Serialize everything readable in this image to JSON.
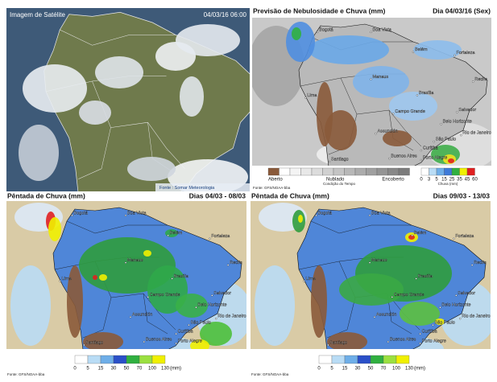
{
  "satellite": {
    "title": "Imagem de Satélite",
    "timestamp": "04/03/16 06:00",
    "source": "Fonte : Somar Meteorologia"
  },
  "forecast": {
    "title": "Previsão de Nebulosidade e Chuva (mm)",
    "date": "Dia 04/03/16 (Sex)",
    "cities": [
      "Bogotá",
      "Boa Vista",
      "Manaus",
      "Belém",
      "Fortaleza",
      "Recife",
      "Lima",
      "Brasília",
      "Salvador",
      "Belo Horizonte",
      "Campo Grande",
      "Rio de Janeiro",
      "Assunción",
      "São Paulo",
      "Curitiba",
      "Santiago",
      "Buenos Aires",
      "Porto Alegre"
    ],
    "cloud_legend": {
      "labels": [
        "Aberto",
        "Nublado",
        "Encoberto"
      ],
      "caption": "Condição do Tempo"
    },
    "rain_legend": {
      "ticks": [
        "0",
        "3",
        "5",
        "15",
        "25",
        "35",
        "45",
        "60"
      ],
      "caption": "Chuva (mm)"
    },
    "source": "Fonte: GFS/NOAA-bba"
  },
  "pentads": [
    {
      "title": "Pêntada de Chuva (mm)",
      "period": "Dias 04/03 - 08/03",
      "cities": [
        "Bogotá",
        "Boa Vista",
        "Manaus",
        "Belém",
        "Fortaleza",
        "Recife",
        "Lima",
        "Brasília",
        "Salvador",
        "Belo Horizonte",
        "Campo Grande",
        "Rio de Janeiro",
        "Assunción",
        "São Paulo",
        "Curitiba",
        "Santiago",
        "Buenos Aires",
        "Porto Alegre"
      ],
      "ticks": [
        "0",
        "5",
        "15",
        "30",
        "50",
        "70",
        "100",
        "130"
      ],
      "unit": "(mm)",
      "source": "Fonte: GFS/NOAA-bba"
    },
    {
      "title": "Pêntada de Chuva (mm)",
      "period": "Dias 09/03 - 13/03",
      "cities": [
        "Bogotá",
        "Boa Vista",
        "Manaus",
        "Belém",
        "Fortaleza",
        "Recife",
        "Lima",
        "Brasília",
        "Salvador",
        "Belo Horizonte",
        "Campo Grande",
        "Rio de Janeiro",
        "Assunción",
        "São Paulo",
        "Curitiba",
        "Santiago",
        "Buenos Aires",
        "Porto Alegre"
      ],
      "ticks": [
        "0",
        "5",
        "15",
        "30",
        "50",
        "70",
        "100",
        "130"
      ],
      "unit": "(mm)",
      "source": "Fonte: GFS/NOAA-bba"
    }
  ]
}
